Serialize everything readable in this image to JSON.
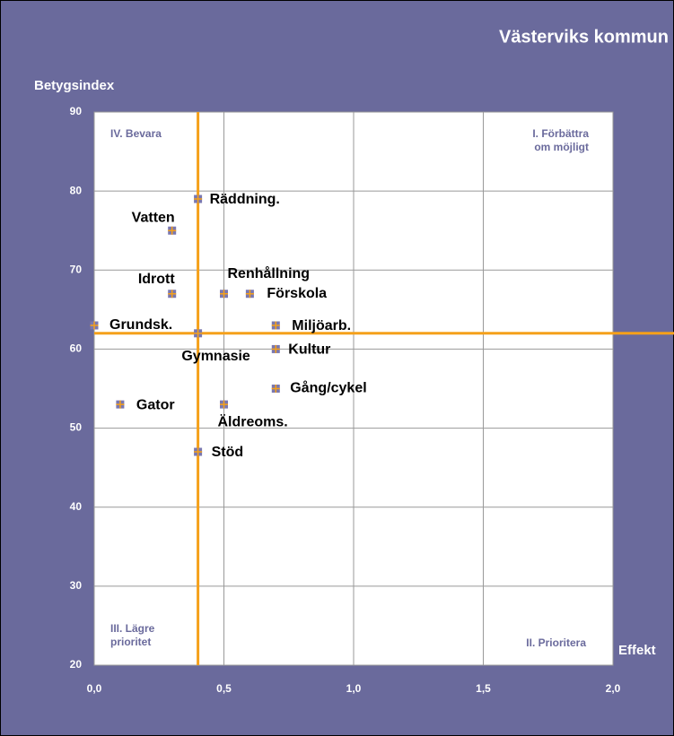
{
  "chart_data": {
    "type": "scatter",
    "title": "Västerviks kommun",
    "y_label": "Betygsindex",
    "x_label": "Effekt",
    "xlim": [
      0,
      2
    ],
    "ylim": [
      20,
      90
    ],
    "xticks": [
      {
        "value": 0,
        "label": "0,0"
      },
      {
        "value": 0.5,
        "label": "0,5"
      },
      {
        "value": 1,
        "label": "1,0"
      },
      {
        "value": 1.5,
        "label": "1,5"
      },
      {
        "value": 2,
        "label": "2,0"
      }
    ],
    "yticks": [
      20,
      30,
      40,
      50,
      60,
      70,
      80,
      90
    ],
    "grid": true,
    "reference_x": 0.4,
    "reference_y": 62,
    "reference_color": "#f5a01a",
    "marker_color": "#7a78b0",
    "series": [
      {
        "name": "Betygsindex",
        "labels": [
          "Räddning.",
          "Vatten",
          "Idrott",
          "Renhållning",
          "Förskola",
          "Grundsk.",
          "Gymnasie",
          "Miljöarb.",
          "Kultur",
          "Gång/cykel",
          "Gator",
          "Äldreoms.",
          "Stöd"
        ],
        "x": [
          0.4,
          0.3,
          0.3,
          0.5,
          0.6,
          0.0,
          0.4,
          0.7,
          0.7,
          0.7,
          0.1,
          0.5,
          0.4
        ],
        "values": [
          79,
          75,
          67,
          67,
          67,
          63,
          62,
          63,
          60,
          55,
          53,
          53,
          47
        ]
      }
    ],
    "quadrants": [
      {
        "corner": "top-left",
        "lines": [
          "IV. Bevara"
        ]
      },
      {
        "corner": "top-right",
        "lines": [
          "I. Förbättra",
          "om möjligt"
        ]
      },
      {
        "corner": "bottom-left",
        "lines": [
          "III. Lägre",
          "prioritet"
        ]
      },
      {
        "corner": "bottom-right",
        "lines": [
          "II. Prioritera"
        ]
      }
    ]
  }
}
